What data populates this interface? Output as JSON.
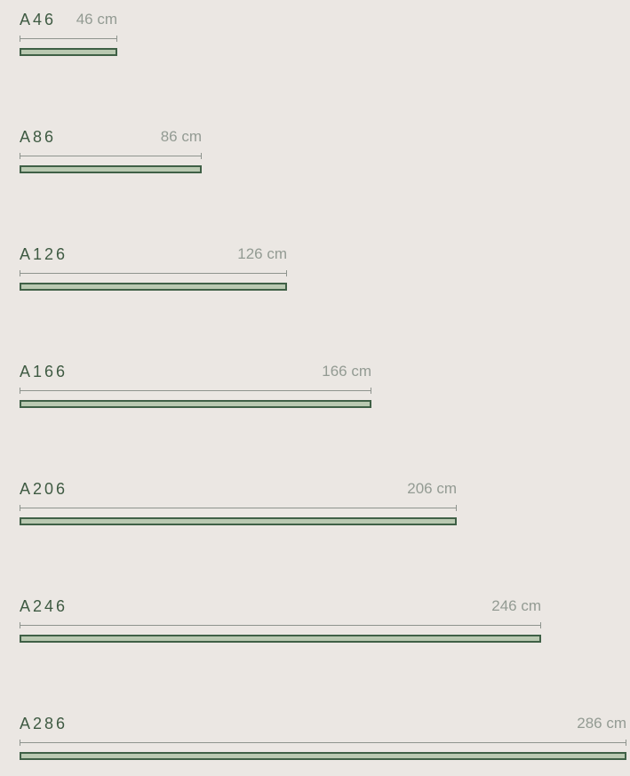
{
  "products": [
    {
      "name": "A46",
      "length_label": "46 cm",
      "length_cm": 46
    },
    {
      "name": "A86",
      "length_label": "86 cm",
      "length_cm": 86
    },
    {
      "name": "A126",
      "length_label": "126 cm",
      "length_cm": 126
    },
    {
      "name": "A166",
      "length_label": "166 cm",
      "length_cm": 166
    },
    {
      "name": "A206",
      "length_label": "206 cm",
      "length_cm": 206
    },
    {
      "name": "A246",
      "length_label": "246 cm",
      "length_cm": 246
    },
    {
      "name": "A286",
      "length_label": "286 cm",
      "length_cm": 286
    }
  ],
  "colors": {
    "background": "#ebe7e3",
    "name_text": "#3e5a42",
    "length_text": "#939b93",
    "bar_border": "#3f6046",
    "bar_fill": "#b9c9b1"
  }
}
